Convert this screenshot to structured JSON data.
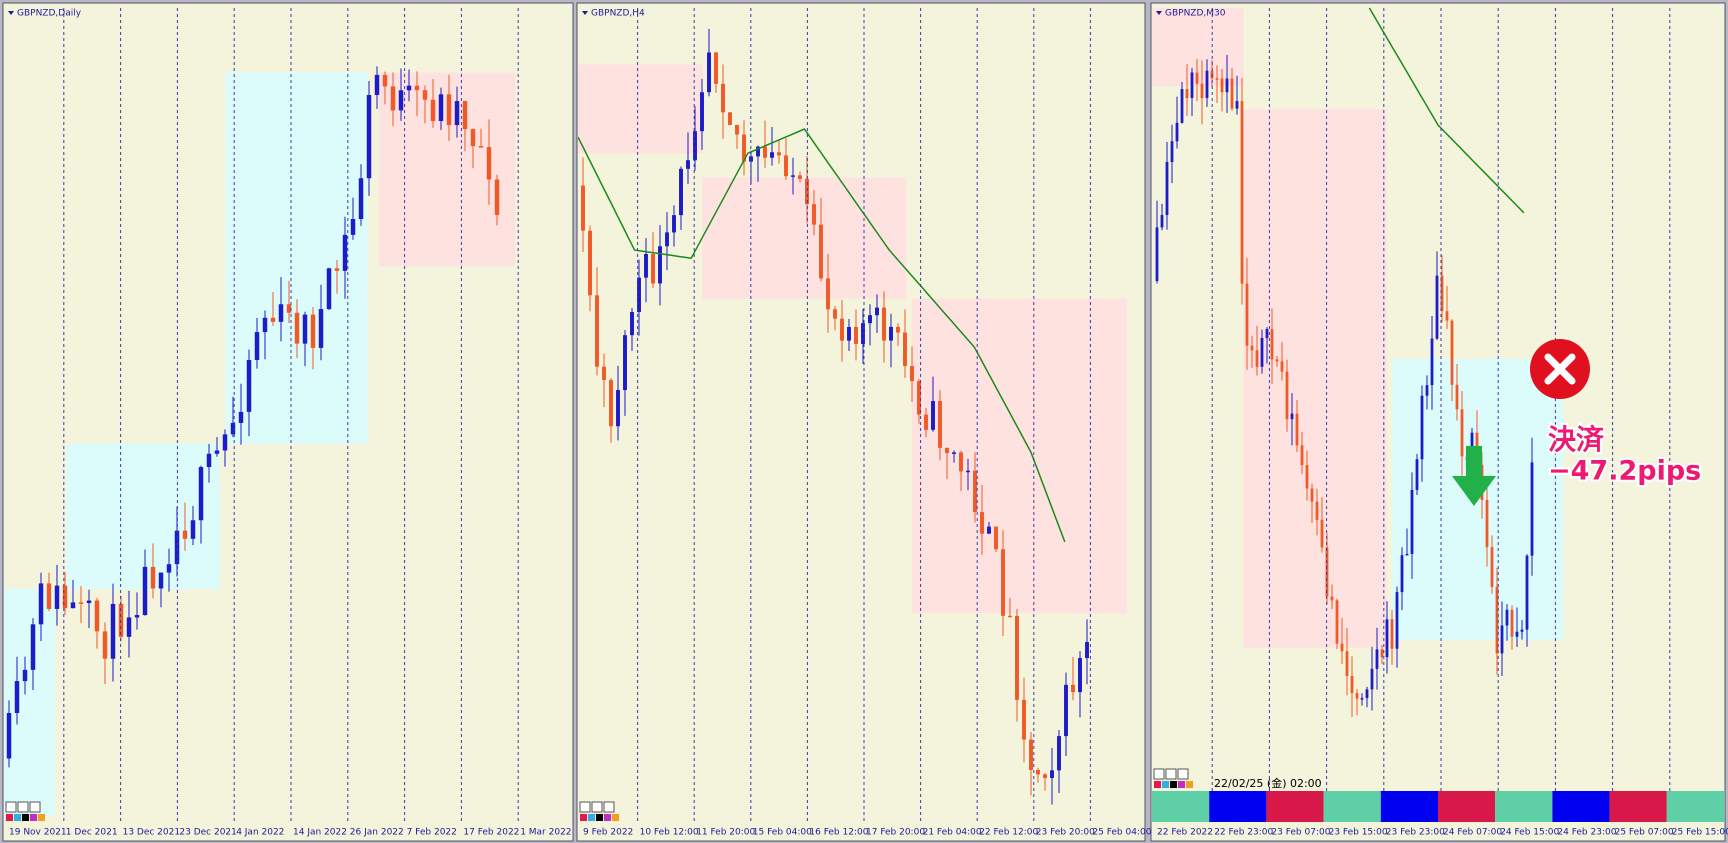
{
  "panels": [
    {
      "title": "GBPNZD,Daily",
      "x_labels": [
        "19 Nov 2021",
        "1 Dec 2021",
        "13 Dec 2021",
        "23 Dec 2021",
        "4 Jan 2022",
        "14 Jan 2022",
        "26 Jan 2022",
        "7 Feb 2022",
        "17 Feb 2022",
        "1 Mar 2022"
      ]
    },
    {
      "title": "GBPNZD,H4",
      "x_labels": [
        "9 Feb 2022",
        "10 Feb 12:00",
        "11 Feb 20:00",
        "15 Feb 04:00",
        "16 Feb 12:00",
        "17 Feb 20:00",
        "21 Feb 04:00",
        "22 Feb 12:00",
        "23 Feb 20:00",
        "25 Feb 04:00"
      ]
    },
    {
      "title": "GBPNZD,M30",
      "x_labels": [
        "22 Feb 2022",
        "22 Feb 23:00",
        "23 Feb 07:00",
        "23 Feb 15:00",
        "23 Feb 23:00",
        "24 Feb 07:00",
        "24 Feb 15:00",
        "24 Feb 23:00",
        "25 Feb 07:00",
        "25 Feb 15:00"
      ],
      "timestamp": "22/02/25 (金) 02:00"
    }
  ],
  "annotation": {
    "label": "決済",
    "result": "−47.2pips"
  }
}
